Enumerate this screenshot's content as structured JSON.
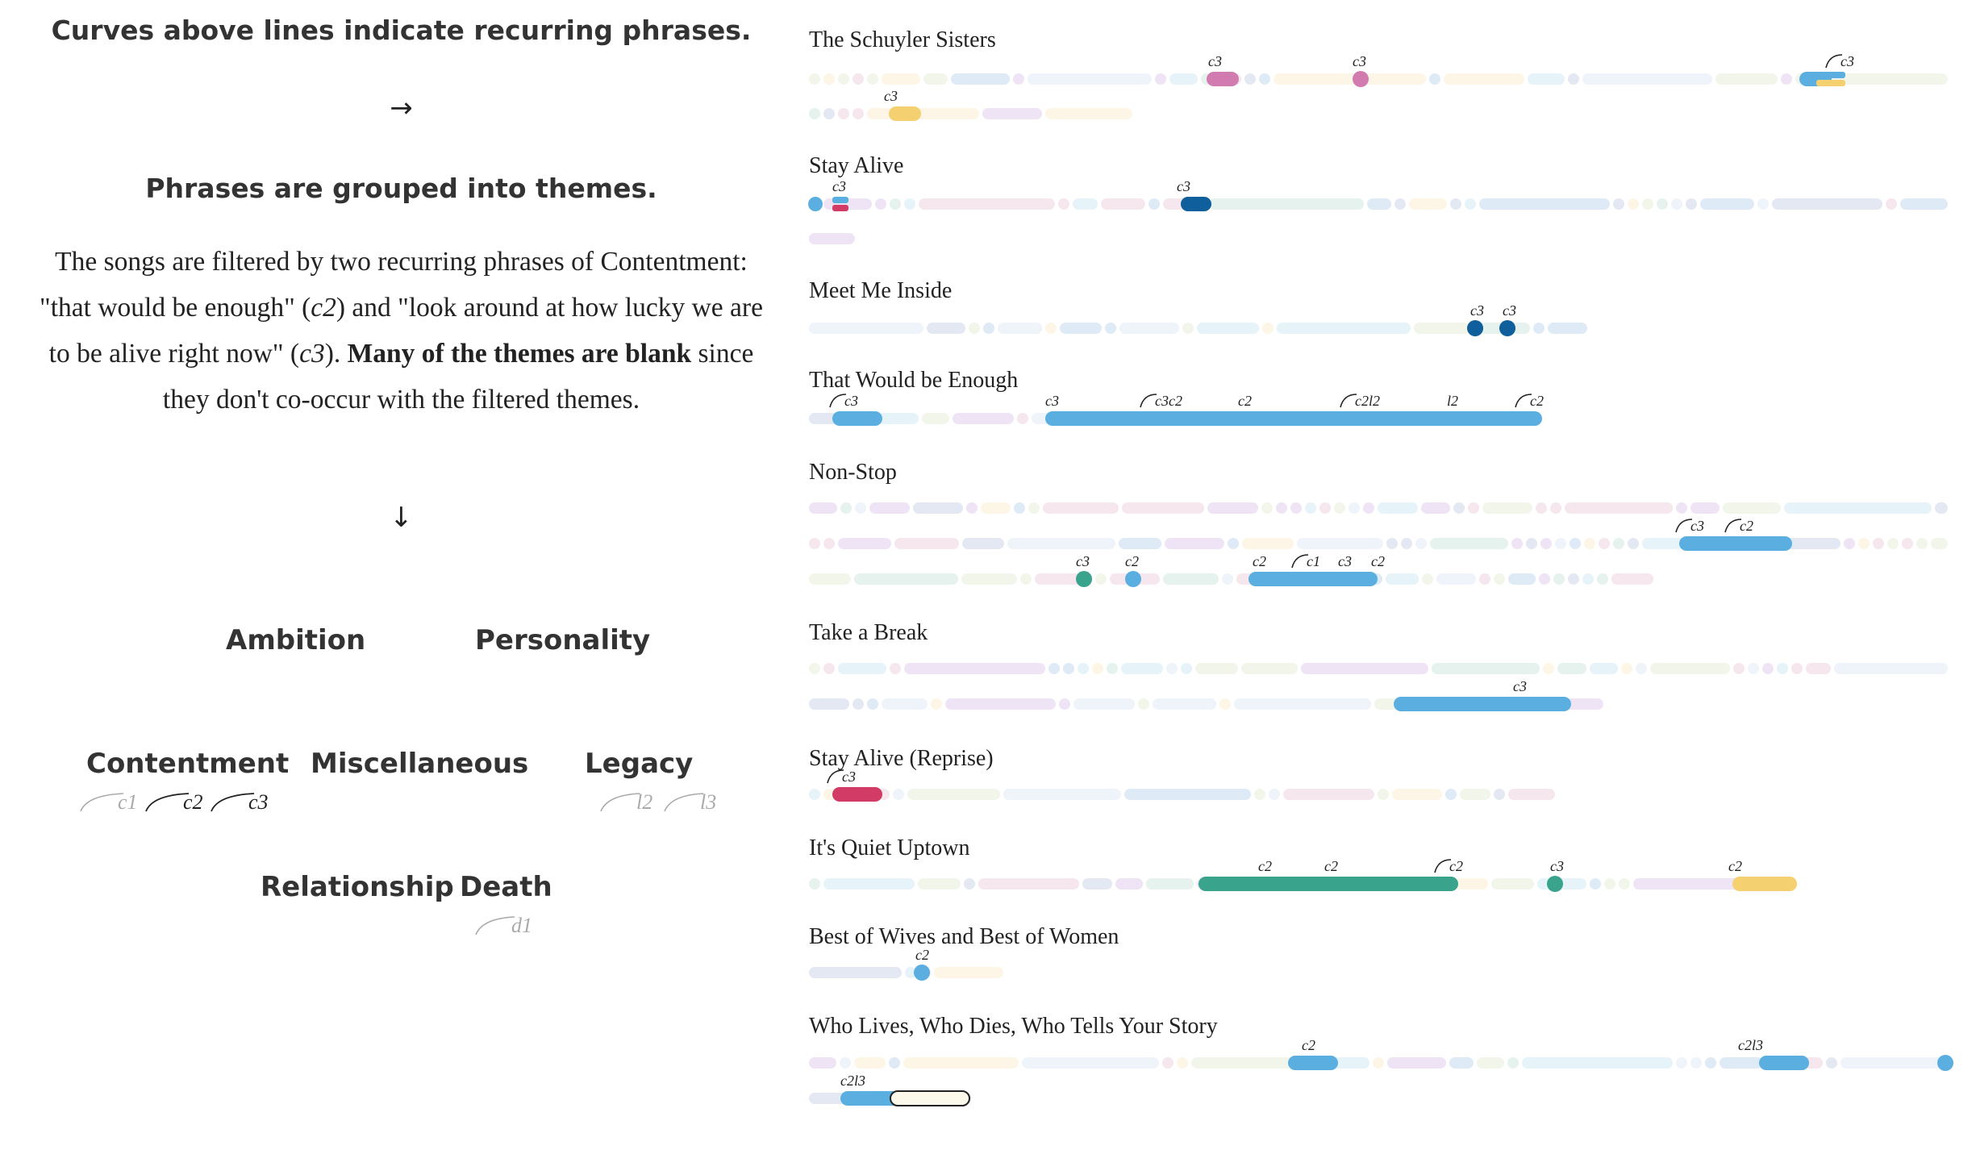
{
  "left": {
    "heading1": "Curves above lines indicate recurring phrases.",
    "arrow1": "→",
    "heading2": "Phrases are grouped into themes.",
    "intro": {
      "p1": "The songs are filtered by two recurring phrases of Contentment: \"that would be enough\" (",
      "c2": "c2",
      "p2": ") and \"look around at how lucky we are to be alive right now\" (",
      "c3": "c3",
      "p3": "). ",
      "bold": "Many of the themes are blank",
      "p4": " since they don't co-occur with the filtered themes."
    },
    "arrow2": "↓",
    "themes": {
      "ambition": "Ambition",
      "personality": "Personality",
      "contentment": "Contentment",
      "miscellaneous": "Miscellaneous",
      "legacy": "Legacy",
      "relationship": "Relationship",
      "death": "Death"
    },
    "phrases": {
      "c1": "c1",
      "c2": "c2",
      "c3": "c3",
      "l2": "l2",
      "l3": "l3",
      "d1": "d1"
    }
  },
  "chart_data": {
    "type": "timeline",
    "colors": {
      "c2_light": "#5aafe0",
      "c3_green": "#3aa38c",
      "c3_navy": "#0e5f9c",
      "c3_pink": "#d17bb0",
      "c3_red": "#d13b66",
      "c2_yellow": "#f5d070"
    },
    "songs": [
      {
        "title": "The Schuyler Sisters",
        "rows": 2,
        "tags": [
          {
            "row": 0,
            "label": "c3"
          },
          {
            "row": 0,
            "label": "c3"
          },
          {
            "row": 0,
            "label": "c3",
            "curve": true
          },
          {
            "row": 1,
            "label": "c3"
          }
        ]
      },
      {
        "title": "Stay Alive",
        "rows": 2,
        "tags": [
          {
            "row": 0,
            "label": "c3"
          },
          {
            "row": 0,
            "label": "c3"
          }
        ]
      },
      {
        "title": "Meet Me Inside",
        "rows": 1,
        "tags": [
          {
            "row": 0,
            "label": "c3"
          },
          {
            "row": 0,
            "label": "c3"
          }
        ]
      },
      {
        "title": "That Would be Enough",
        "rows": 1,
        "tags": [
          {
            "row": 0,
            "label": "c3",
            "curve": true
          },
          {
            "row": 0,
            "label": "c3"
          },
          {
            "row": 0,
            "label": "c3c2",
            "curve": true
          },
          {
            "row": 0,
            "label": "c2"
          },
          {
            "row": 0,
            "label": "c2l2",
            "curve": true
          },
          {
            "row": 0,
            "label": "l2"
          },
          {
            "row": 0,
            "label": "c2",
            "curve": true
          }
        ]
      },
      {
        "title": "Non-Stop",
        "rows": 3,
        "tags": [
          {
            "row": 1,
            "label": "c3",
            "curve": true
          },
          {
            "row": 1,
            "label": "c2",
            "curve": true
          },
          {
            "row": 2,
            "label": "c3"
          },
          {
            "row": 2,
            "label": "c2"
          },
          {
            "row": 2,
            "label": "c2"
          },
          {
            "row": 2,
            "label": "c1",
            "curve": true
          },
          {
            "row": 2,
            "label": "c3"
          },
          {
            "row": 2,
            "label": "c2"
          }
        ]
      },
      {
        "title": "Take a Break",
        "rows": 2,
        "tags": [
          {
            "row": 1,
            "label": "c3"
          }
        ]
      },
      {
        "title": "Stay Alive (Reprise)",
        "rows": 1,
        "tags": [
          {
            "row": 0,
            "label": "c3",
            "curve": true
          }
        ]
      },
      {
        "title": "It's Quiet Uptown",
        "rows": 1,
        "tags": [
          {
            "row": 0,
            "label": "c2"
          },
          {
            "row": 0,
            "label": "c2"
          },
          {
            "row": 0,
            "label": "c2",
            "curve": true
          },
          {
            "row": 0,
            "label": "c3"
          },
          {
            "row": 0,
            "label": "c2"
          }
        ]
      },
      {
        "title": "Best of Wives and Best of Women",
        "rows": 1,
        "tags": [
          {
            "row": 0,
            "label": "c2"
          }
        ]
      },
      {
        "title": "Who Lives, Who Dies, Who Tells Your Story",
        "rows": 2,
        "tags": [
          {
            "row": 0,
            "label": "c2"
          },
          {
            "row": 0,
            "label": "c2l3"
          },
          {
            "row": 1,
            "label": "c2l3"
          }
        ]
      }
    ]
  }
}
